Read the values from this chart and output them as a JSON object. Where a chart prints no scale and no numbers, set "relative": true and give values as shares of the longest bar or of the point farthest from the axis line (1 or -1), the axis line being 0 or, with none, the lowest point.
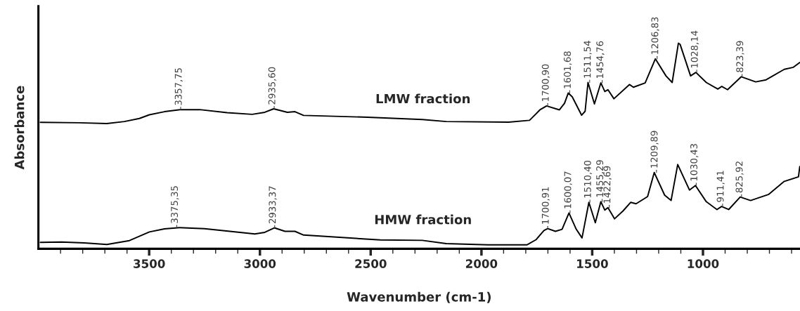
{
  "chart_data": {
    "type": "line",
    "relative": true,
    "xlabel": "Wavenumber (cm-1)",
    "ylabel": "Absorbance",
    "xlim": [
      4000,
      562
    ],
    "xticks": [
      3500,
      3000,
      2500,
      2000,
      1500,
      1000,
      {
        "value": 3900,
        "label": null
      },
      {
        "value": 3800,
        "label": null
      },
      {
        "value": 3700,
        "label": null
      },
      {
        "value": 3600,
        "label": null
      },
      {
        "value": 3400,
        "label": null
      },
      {
        "value": 3300,
        "label": null
      },
      {
        "value": 3200,
        "label": null
      },
      {
        "value": 3100,
        "label": null
      },
      {
        "value": 2900,
        "label": null
      },
      {
        "value": 2800,
        "label": null
      },
      {
        "value": 2700,
        "label": null
      },
      {
        "value": 2600,
        "label": null
      },
      {
        "value": 2400,
        "label": null
      },
      {
        "value": 2300,
        "label": null
      },
      {
        "value": 2200,
        "label": null
      },
      {
        "value": 2100,
        "label": null
      },
      {
        "value": 1900,
        "label": null
      },
      {
        "value": 1800,
        "label": null
      },
      {
        "value": 1700,
        "label": null
      },
      {
        "value": 1600,
        "label": null
      },
      {
        "value": 1400,
        "label": null
      },
      {
        "value": 1300,
        "label": null
      },
      {
        "value": 1200,
        "label": null
      },
      {
        "value": 1100,
        "label": null
      },
      {
        "value": 900,
        "label": null
      },
      {
        "value": 800,
        "label": null
      },
      {
        "value": 700,
        "label": null
      },
      {
        "value": 600,
        "label": null
      }
    ],
    "grid": false,
    "legend": false,
    "marker": "none",
    "line_style": "solid",
    "series": [
      {
        "name": "LMW fraction",
        "color": "#000000",
        "x": [
          3991,
          3816,
          3691,
          3612,
          3544,
          3499,
          3431,
          3357,
          3272,
          3148,
          3035,
          2978,
          2938,
          2876,
          2842,
          2803,
          2514,
          2267,
          2159,
          1877,
          1783,
          1736,
          1706,
          1648,
          1625,
          1608,
          1590,
          1548,
          1532,
          1519,
          1490,
          1461,
          1443,
          1429,
          1402,
          1332,
          1314,
          1261,
          1215,
          1167,
          1139,
          1111,
          1103,
          1056,
          1032,
          985,
          933,
          915,
          889,
          827,
          762,
          715,
          633,
          592,
          563
        ],
        "values": [
          0.615,
          0.613,
          0.609,
          0.619,
          0.634,
          0.652,
          0.667,
          0.677,
          0.677,
          0.662,
          0.654,
          0.664,
          0.681,
          0.664,
          0.667,
          0.649,
          0.64,
          0.629,
          0.619,
          0.616,
          0.625,
          0.676,
          0.695,
          0.676,
          0.708,
          0.758,
          0.739,
          0.65,
          0.669,
          0.809,
          0.705,
          0.807,
          0.765,
          0.774,
          0.73,
          0.799,
          0.786,
          0.807,
          0.924,
          0.841,
          0.809,
          1.0,
          0.994,
          0.841,
          0.858,
          0.809,
          0.777,
          0.79,
          0.774,
          0.837,
          0.812,
          0.822,
          0.873,
          0.883,
          0.906
        ]
      },
      {
        "name": "HMW fraction",
        "color": "#000000",
        "x": [
          3991,
          3895,
          3793,
          3691,
          3589,
          3499,
          3431,
          3363,
          3250,
          3136,
          3023,
          2978,
          2935,
          2887,
          2842,
          2803,
          2457,
          2267,
          2159,
          1971,
          1795,
          1754,
          1718,
          1701,
          1666,
          1636,
          1605,
          1572,
          1546,
          1515,
          1486,
          1461,
          1443,
          1429,
          1399,
          1361,
          1326,
          1302,
          1250,
          1220,
          1173,
          1144,
          1114,
          1061,
          1034,
          985,
          937,
          916,
          884,
          832,
          785,
          703,
          633,
          569,
          563
        ],
        "values": [
          0.031,
          0.033,
          0.029,
          0.021,
          0.04,
          0.082,
          0.097,
          0.103,
          0.098,
          0.085,
          0.072,
          0.08,
          0.102,
          0.085,
          0.085,
          0.067,
          0.043,
          0.041,
          0.025,
          0.019,
          0.019,
          0.044,
          0.089,
          0.098,
          0.085,
          0.095,
          0.174,
          0.095,
          0.053,
          0.226,
          0.127,
          0.229,
          0.188,
          0.2,
          0.146,
          0.184,
          0.226,
          0.219,
          0.254,
          0.371,
          0.261,
          0.235,
          0.41,
          0.286,
          0.308,
          0.229,
          0.191,
          0.206,
          0.191,
          0.252,
          0.235,
          0.265,
          0.328,
          0.35,
          0.4
        ]
      }
    ],
    "annotations": [
      {
        "text": "3357,75",
        "x": 3357.75,
        "y": 0.677
      },
      {
        "text": "2935,60",
        "x": 2935.6,
        "y": 0.681
      },
      {
        "text": "1700,90",
        "x": 1700.9,
        "y": 0.695
      },
      {
        "text": "1601,68",
        "x": 1601.68,
        "y": 0.758
      },
      {
        "text": "1511,54",
        "x": 1511.54,
        "y": 0.809
      },
      {
        "text": "1454,76",
        "x": 1454.76,
        "y": 0.807
      },
      {
        "text": "1206,83",
        "x": 1206.83,
        "y": 0.924
      },
      {
        "text": "1028,14",
        "x": 1028.14,
        "y": 0.858
      },
      {
        "text": "823,39",
        "x": 823.39,
        "y": 0.837
      },
      {
        "text": "3375,35",
        "x": 3375.35,
        "y": 0.103
      },
      {
        "text": "2933,37",
        "x": 2933.37,
        "y": 0.102
      },
      {
        "text": "1700,91",
        "x": 1700.91,
        "y": 0.098
      },
      {
        "text": "1600,07",
        "x": 1600.07,
        "y": 0.174
      },
      {
        "text": "1510,40",
        "x": 1510.4,
        "y": 0.226
      },
      {
        "text": "1455,29",
        "x": 1455.29,
        "y": 0.229
      },
      {
        "text": "1422,69",
        "x": 1422.69,
        "y": 0.2
      },
      {
        "text": "1209,89",
        "x": 1209.89,
        "y": 0.371
      },
      {
        "text": "1030,43",
        "x": 1030.43,
        "y": 0.308
      },
      {
        "text": "911,41",
        "x": 911.41,
        "y": 0.206
      },
      {
        "text": "825,92",
        "x": 825.92,
        "y": 0.252
      }
    ]
  }
}
